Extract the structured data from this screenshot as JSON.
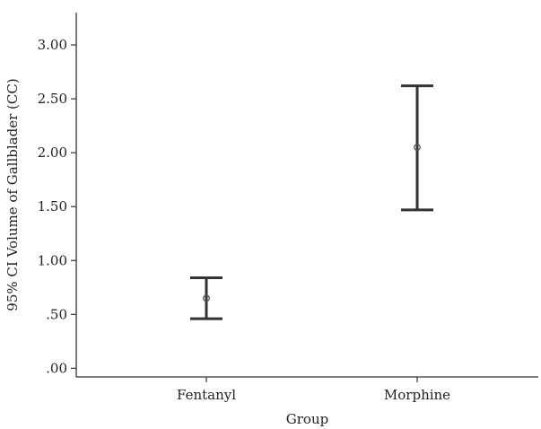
{
  "chart_data": {
    "type": "errorbar",
    "title": "",
    "xlabel": "Group",
    "ylabel": "95% CI Volume of Gallblader (CC)",
    "ylim": [
      -0.08,
      3.3
    ],
    "yticks": [
      {
        "value": 0.0,
        "label": ".00"
      },
      {
        "value": 0.5,
        "label": ".50"
      },
      {
        "value": 1.0,
        "label": "1.00"
      },
      {
        "value": 1.5,
        "label": "1.50"
      },
      {
        "value": 2.0,
        "label": "2.00"
      },
      {
        "value": 2.5,
        "label": "2.50"
      },
      {
        "value": 3.0,
        "label": "3.00"
      }
    ],
    "categories": [
      "Fentanyl",
      "Morphine"
    ],
    "series": [
      {
        "mean": [
          0.65,
          2.05
        ],
        "lower": [
          0.46,
          1.47
        ],
        "upper": [
          0.84,
          2.62
        ]
      }
    ],
    "grid": false,
    "legend": "none"
  }
}
